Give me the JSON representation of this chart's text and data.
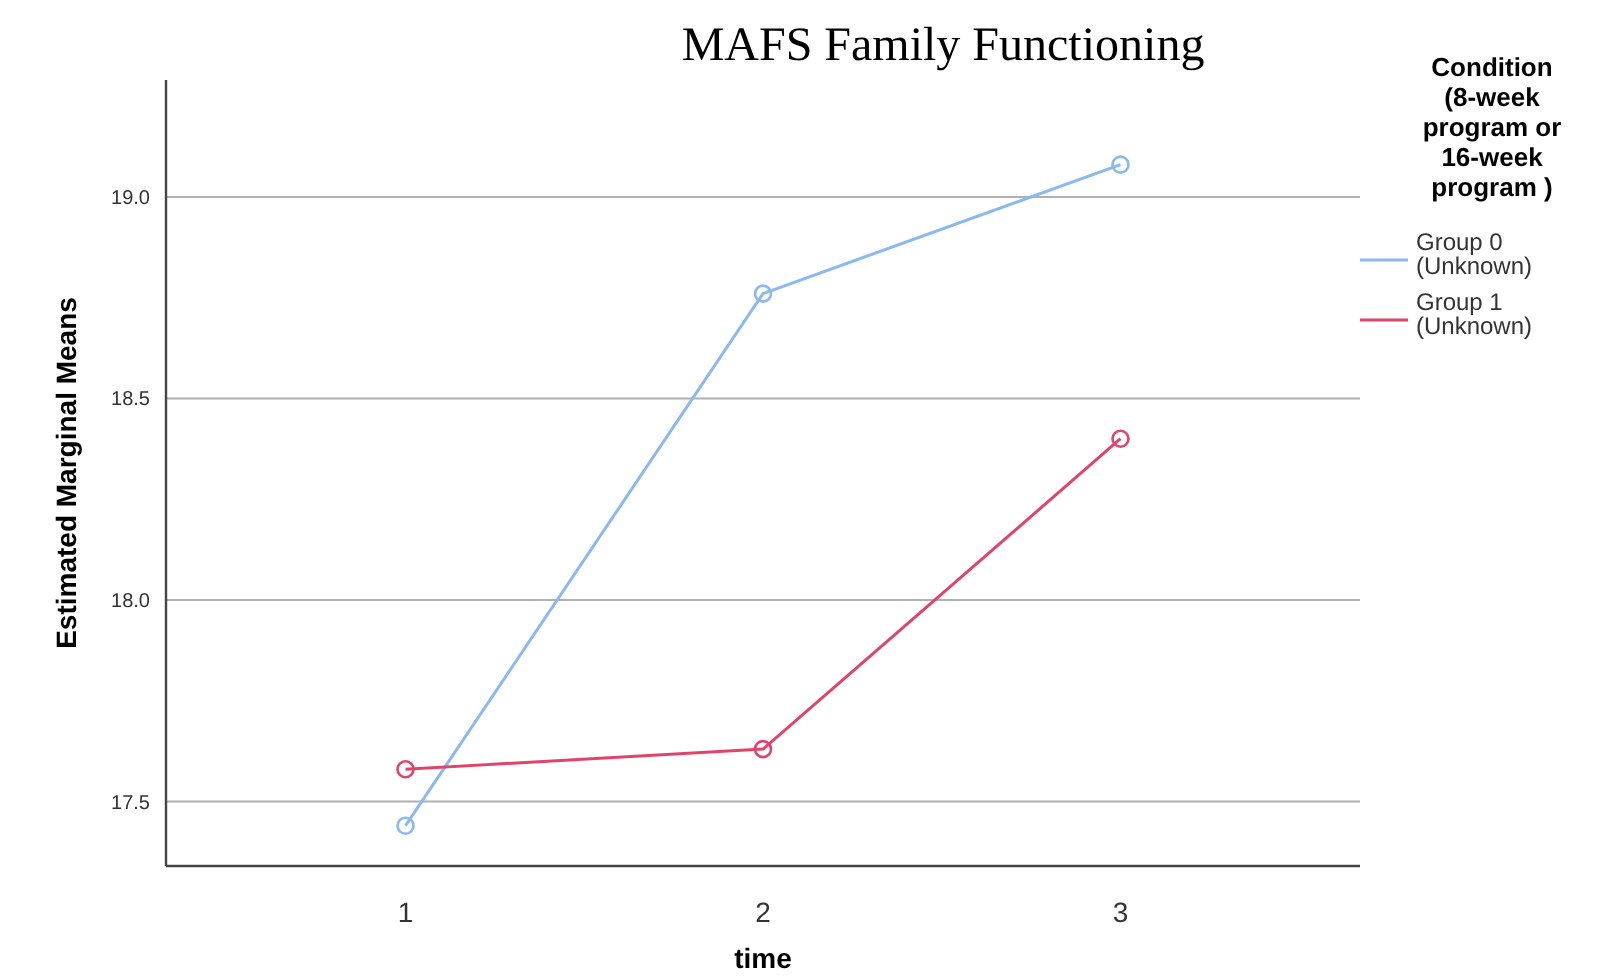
{
  "chart_data": {
    "type": "line",
    "title": "MAFS Family Functioning",
    "xlabel": "time",
    "ylabel": "Estimated Marginal Means",
    "legend_title": "Condition (8-week program or 16-week program )",
    "categories": [
      "1",
      "2",
      "3"
    ],
    "series": [
      {
        "name": "Group 0 (Unknown)",
        "color": "#8ab8f0",
        "values": [
          17.44,
          18.76,
          19.08
        ]
      },
      {
        "name": "Group 1 (Unknown)",
        "color": "#e0446a",
        "values": [
          17.58,
          17.63,
          18.4
        ]
      }
    ],
    "ylim": [
      17.34,
      19.29
    ],
    "yticks": [
      {
        "value": 17.5,
        "label": "17.5"
      },
      {
        "value": 18,
        "label": "18.0"
      },
      {
        "value": 18.5,
        "label": "18.5"
      },
      {
        "value": 19,
        "label": "19.0"
      }
    ],
    "grid": "y",
    "legend": "top right",
    "marker": "circle",
    "line_style": "solid"
  }
}
